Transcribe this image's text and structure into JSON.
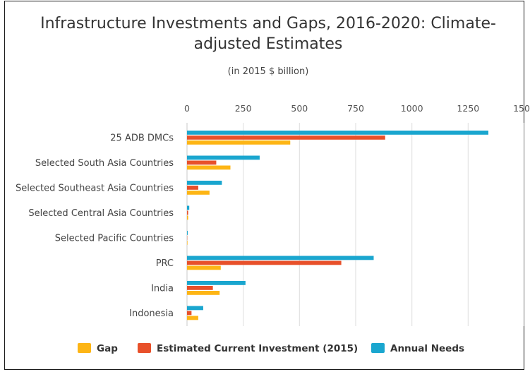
{
  "chart_data": {
    "type": "bar",
    "orientation": "horizontal",
    "title_lines": [
      "Infrastructure Investments and Gaps, 2016-2020: Climate-",
      "adjusted Estimates"
    ],
    "subtitle": "(in 2015 $ billion)",
    "categories": [
      "25 ADB DMCs",
      "Selected South Asia Countries",
      "Selected Southeast Asia Countries",
      "Selected Central Asia Countries",
      "Selected Pacific Countries",
      "PRC",
      "India",
      "Indonesia"
    ],
    "xlim": [
      0,
      1500
    ],
    "ticks": [
      0,
      250,
      500,
      750,
      1000,
      1250,
      1500
    ],
    "grid": true,
    "legend_position": "bottom",
    "series": [
      {
        "name": "Annual Needs",
        "color": "#1aa6cf",
        "values": [
          1340,
          323,
          155,
          10,
          3,
          830,
          260,
          72
        ]
      },
      {
        "name": "Estimated Current Investment (2015)",
        "color": "#e8502a",
        "values": [
          881,
          130,
          50,
          5,
          1,
          686,
          115,
          20
        ]
      },
      {
        "name": "Gap",
        "color": "#fdb515",
        "values": [
          459,
          193,
          100,
          5,
          2,
          150,
          145,
          50
        ]
      }
    ],
    "legend_order": [
      "Gap",
      "Estimated Current Investment (2015)",
      "Annual Needs"
    ]
  }
}
